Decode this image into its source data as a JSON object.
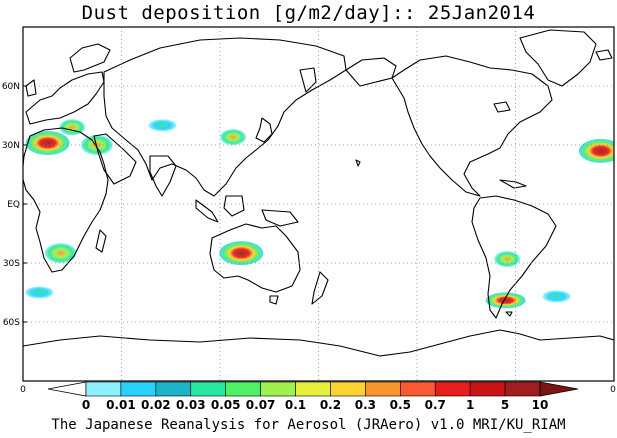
{
  "title": "Dust deposition [g/m2/day]:: 25Jan2014",
  "credit": "The Japanese Reanalysis for Aerosol (JRAero) v1.0 MRI/KU_RIAM",
  "map": {
    "projection": "cylindrical equidistant, 0E centered",
    "lat_ticks": [
      {
        "label": "60N",
        "lat": 60
      },
      {
        "label": "30N",
        "lat": 30
      },
      {
        "label": "EQ",
        "lat": 0
      },
      {
        "label": "30S",
        "lat": -30
      },
      {
        "label": "60S",
        "lat": -60
      }
    ],
    "grid": true,
    "grid_style": "dotted",
    "coastline_color": "#000000",
    "hotspots": [
      {
        "name": "North Africa / Sahara",
        "lon": 15,
        "lat": 31,
        "level": "5"
      },
      {
        "name": "Arabia",
        "lon": 45,
        "lat": 30,
        "level": "0.3"
      },
      {
        "name": "Mediterranean",
        "lon": 30,
        "lat": 39,
        "level": "0.1"
      },
      {
        "name": "Southern Africa",
        "lon": 23,
        "lat": -25,
        "level": "0.7"
      },
      {
        "name": "Central Australia",
        "lon": 133,
        "lat": -25,
        "level": "10"
      },
      {
        "name": "Eastern China / Japan",
        "lon": 128,
        "lat": 34,
        "level": "0.1"
      },
      {
        "name": "Central Asia",
        "lon": 85,
        "lat": 40,
        "level": "0.05"
      },
      {
        "name": "Patagonia",
        "lon": -66,
        "lat": -49,
        "level": "1"
      },
      {
        "name": "South Atlantic",
        "lon": -35,
        "lat": -47,
        "level": "0.07"
      },
      {
        "name": "Central South America",
        "lon": -65,
        "lat": -28,
        "level": "0.1"
      },
      {
        "name": "North Africa west coast",
        "lon": -8,
        "lat": 27,
        "level": "5"
      },
      {
        "name": "Southern Ocean",
        "lon": 10,
        "lat": -45,
        "level": "0.02"
      }
    ]
  },
  "colorbar": {
    "labels": [
      "0",
      "0.01",
      "0.02",
      "0.03",
      "0.05",
      "0.07",
      "0.1",
      "0.2",
      "0.3",
      "0.5",
      "0.7",
      "1",
      "5",
      "10"
    ],
    "colors": [
      "#ffffff",
      "#8cf0ff",
      "#28d2fa",
      "#1eb4c8",
      "#28e6a0",
      "#50f064",
      "#a0f050",
      "#e6f03c",
      "#fad232",
      "#fa9632",
      "#fa5a32",
      "#e61e1e",
      "#c81414",
      "#a01e1e",
      "#7d1414"
    ],
    "left_arrow_color": "#ffffff",
    "right_arrow_color": "#7d1414"
  },
  "edge_labels": {
    "left": "0",
    "right": "0"
  }
}
